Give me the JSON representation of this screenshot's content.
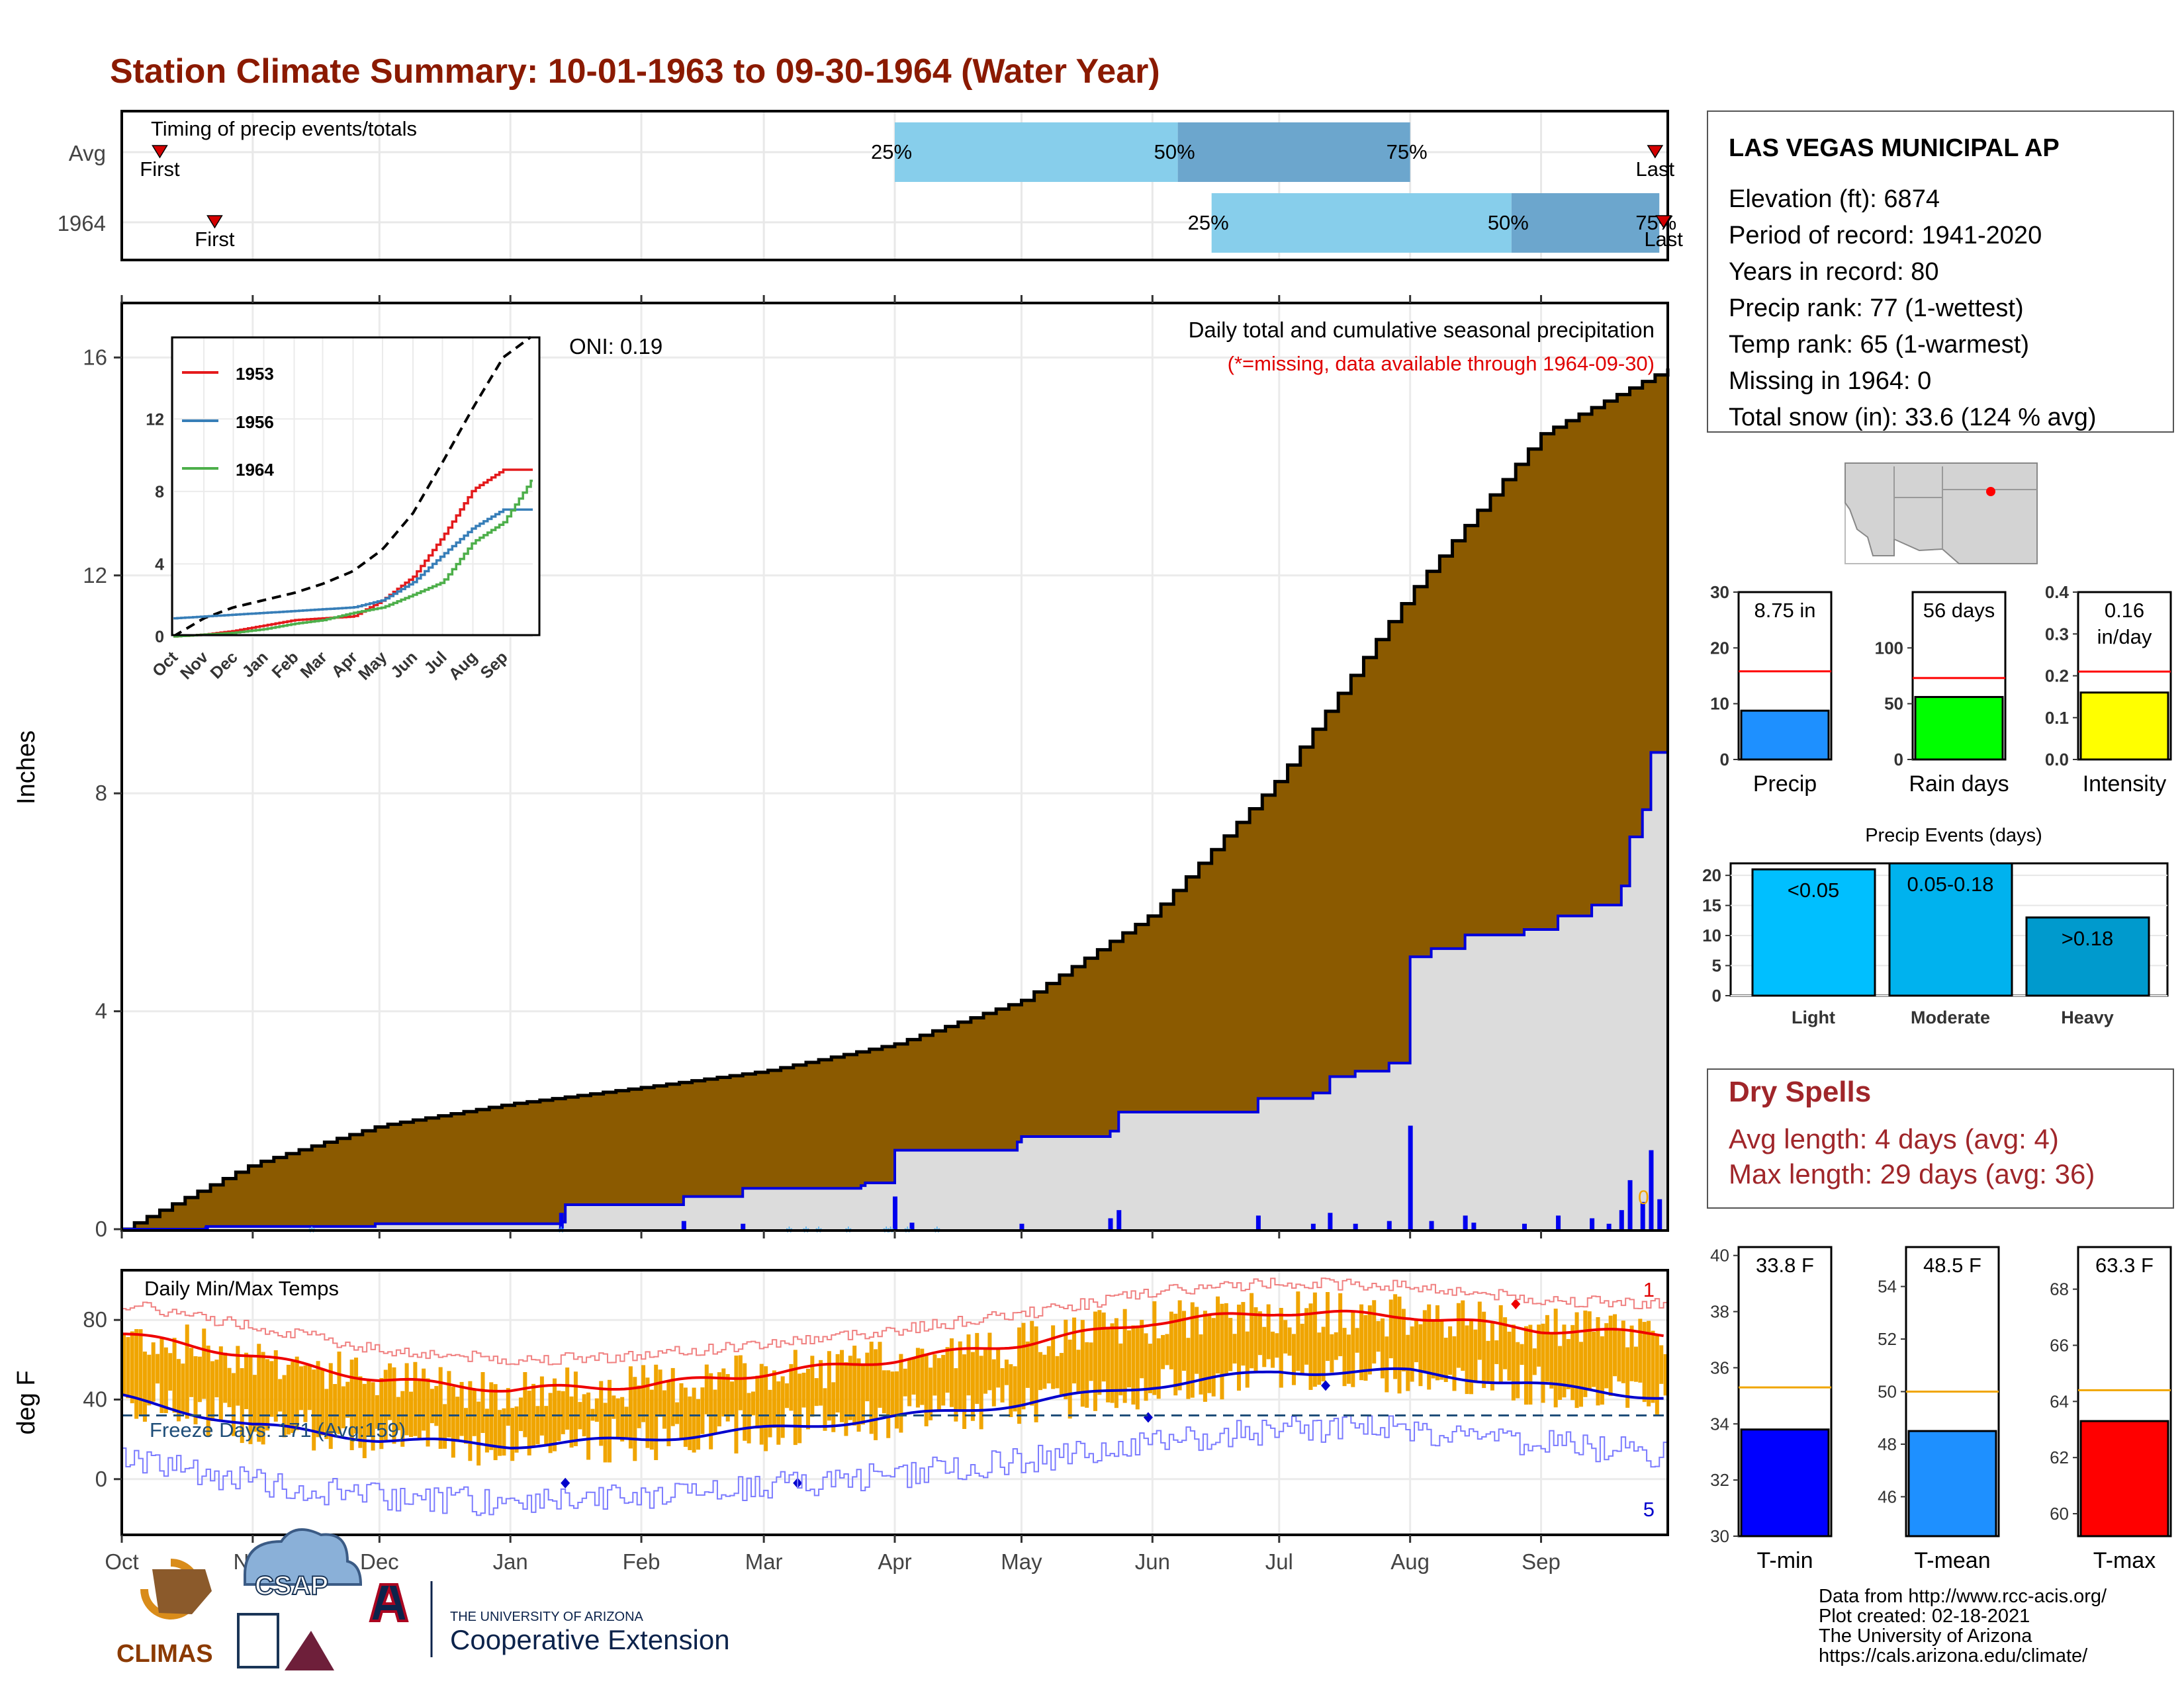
{
  "title": "Station Climate Summary: 10-01-1963 to 09-30-1964 (Water Year)",
  "colors": {
    "title": "#8b1a00",
    "accent_red": "#a0262a",
    "precip_brown": "#8b5a00",
    "avg_gray": "#dcdcdc",
    "obs_blue": "#0000dd",
    "quartile_light": "#87ceeb",
    "quartile_dark": "#6ca6cd",
    "temp_bar": "#f0a500"
  },
  "timing": {
    "label": "Timing of precip events/totals",
    "rows": [
      {
        "label": "Avg",
        "first": "First",
        "last": "Last",
        "q25": "25%",
        "q50": "50%",
        "q75": "75%"
      },
      {
        "label": "1964",
        "first": "First",
        "last": "Last",
        "q25": "25%",
        "q50": "50%",
        "q75": "75%"
      }
    ]
  },
  "station": {
    "name": "LAS VEGAS MUNICIPAL AP",
    "lines": [
      "Elevation (ft): 6874",
      "Period of record: 1941-2020",
      "Years in record: 80",
      "Precip rank: 77 (1-wettest)",
      "Temp rank: 65 (1-warmest)",
      "Missing in 1964: 0",
      "Total snow (in): 33.6 (124 % avg)"
    ]
  },
  "main_panel": {
    "ylabel": "Inches",
    "note1": "Daily total and cumulative seasonal precipitation",
    "note2": "(*=missing, data available through 1964-09-30)",
    "oni": "ONI: 0.19",
    "end_marker": "0",
    "ticks": [
      "0",
      "4",
      "8",
      "12",
      "16"
    ]
  },
  "inset": {
    "legend": [
      "1953",
      "1956",
      "1964"
    ],
    "ticks": [
      "0",
      "4",
      "8",
      "12"
    ],
    "months": [
      "Oct",
      "Nov",
      "Dec",
      "Jan",
      "Feb",
      "Mar",
      "Apr",
      "May",
      "Jun",
      "Jul",
      "Aug",
      "Sep"
    ]
  },
  "temp_panel": {
    "label": "Daily Min/Max Temps",
    "ylabel": "deg F",
    "freeze": "Freeze Days: 171 (Avg:159)",
    "count_top": "1",
    "count_bottom": "5",
    "ticks": [
      "0",
      "40",
      "80"
    ]
  },
  "x_months": [
    "Oct",
    "Nov",
    "Dec",
    "Jan",
    "Feb",
    "Mar",
    "Apr",
    "May",
    "Jun",
    "Jul",
    "Aug",
    "Sep"
  ],
  "precip_mini": [
    {
      "value_label": "8.75 in",
      "label": "Precip",
      "ticks": [
        "0",
        "10",
        "20",
        "30"
      ]
    },
    {
      "value_label": "56 days",
      "label": "Rain days",
      "ticks": [
        "0",
        "50",
        "100"
      ]
    },
    {
      "value_label": "0.16",
      "value_label2": "in/day",
      "label": "Intensity",
      "ticks": [
        "0.0",
        "0.1",
        "0.2",
        "0.3",
        "0.4"
      ]
    }
  ],
  "events": {
    "title": "Precip Events (days)",
    "ticks": [
      "0",
      "5",
      "10",
      "15",
      "20"
    ],
    "bars": [
      {
        "label": "<0.05",
        "category": "Light"
      },
      {
        "label": "0.05-0.18",
        "category": "Moderate"
      },
      {
        "label": ">0.18",
        "category": "Heavy"
      }
    ]
  },
  "dry_spells": {
    "title": "Dry Spells",
    "avg": "Avg length: 4 days (avg: 4)",
    "max": "Max length: 29 days (avg: 36)"
  },
  "temp_mini": [
    {
      "value_label": "33.8 F",
      "label": "T-min",
      "ticks": [
        "30",
        "32",
        "34",
        "36",
        "38",
        "40"
      ]
    },
    {
      "value_label": "48.5 F",
      "label": "T-mean",
      "ticks": [
        "46",
        "48",
        "50",
        "52",
        "54"
      ]
    },
    {
      "value_label": "63.3 F",
      "label": "T-max",
      "ticks": [
        "60",
        "62",
        "64",
        "66",
        "68"
      ]
    }
  ],
  "footer": {
    "lines": [
      "Data from http://www.rcc-acis.org/",
      "Plot created: 02-18-2021",
      "The University of Arizona",
      "https://cals.arizona.edu/climate/"
    ],
    "logo_climas": "CLIMAS",
    "logo_csap": "CSAP",
    "ua_small": "THE UNIVERSITY OF ARIZONA",
    "ua_big": "Cooperative Extension"
  },
  "chart_data": [
    {
      "type": "area",
      "title": "Daily total and cumulative seasonal precipitation",
      "ylabel": "Inches",
      "ylim": [
        0,
        17
      ],
      "x": [
        "Oct",
        "Nov",
        "Dec",
        "Jan",
        "Feb",
        "Mar",
        "Apr",
        "May",
        "Jun",
        "Jul",
        "Aug",
        "Sep",
        "Sep-30"
      ],
      "series": [
        {
          "name": "avg cumulative",
          "values": [
            0,
            1.2,
            1.9,
            2.3,
            2.6,
            2.9,
            3.4,
            4.2,
            5.8,
            8.3,
            11.7,
            14.6,
            15.8
          ]
        },
        {
          "name": "1964 cumulative",
          "values": [
            0,
            0.1,
            0.15,
            0.4,
            0.7,
            0.85,
            1.4,
            1.6,
            2.3,
            3.0,
            5.2,
            6.3,
            8.75
          ]
        }
      ]
    },
    {
      "type": "line",
      "title": "Daily Min/Max Temps",
      "ylabel": "deg F",
      "ylim": [
        -25,
        105
      ],
      "x": [
        "Oct",
        "Nov",
        "Dec",
        "Jan",
        "Feb",
        "Mar",
        "Apr",
        "May",
        "Jun",
        "Jul",
        "Aug",
        "Sep"
      ],
      "series": [
        {
          "name": "avg max",
          "values": [
            73,
            62,
            50,
            45,
            47,
            53,
            60,
            68,
            79,
            84,
            82,
            75
          ]
        },
        {
          "name": "avg min",
          "values": [
            41,
            27,
            20,
            17,
            20,
            25,
            31,
            38,
            47,
            54,
            54,
            47
          ]
        }
      ]
    },
    {
      "type": "line",
      "xlim": [
        "Oct",
        "Sep"
      ],
      "ylim": [
        0,
        16
      ],
      "x": [
        "Oct",
        "Nov",
        "Dec",
        "Jan",
        "Feb",
        "Mar",
        "Apr",
        "May",
        "Jun",
        "Jul",
        "Aug",
        "Sep",
        "Sep-30"
      ],
      "series": [
        {
          "name": "avg",
          "values": [
            0,
            1.0,
            1.6,
            2.0,
            2.4,
            2.9,
            3.6,
            4.8,
            6.8,
            9.6,
            12.6,
            15.4,
            16.6
          ]
        },
        {
          "name": "1953",
          "values": [
            0,
            0.1,
            0.3,
            0.6,
            0.9,
            1.0,
            1.1,
            2.0,
            3.3,
            5.5,
            8.1,
            9.2,
            9.2
          ]
        },
        {
          "name": "1956",
          "values": [
            1.0,
            1.1,
            1.2,
            1.3,
            1.4,
            1.5,
            1.6,
            2.0,
            3.0,
            4.5,
            6.0,
            7.0,
            7.0
          ]
        },
        {
          "name": "1964",
          "values": [
            0,
            0.1,
            0.2,
            0.4,
            0.7,
            0.9,
            1.3,
            1.6,
            2.3,
            3.0,
            5.2,
            6.3,
            8.75
          ]
        }
      ]
    },
    {
      "type": "bar",
      "categories": [
        "Precip"
      ],
      "values": [
        8.75
      ],
      "avg": 15.8,
      "ylim": [
        0,
        30
      ]
    },
    {
      "type": "bar",
      "categories": [
        "Rain days"
      ],
      "values": [
        56
      ],
      "avg": 73,
      "ylim": [
        0,
        150
      ]
    },
    {
      "type": "bar",
      "categories": [
        "Intensity"
      ],
      "values": [
        0.16
      ],
      "avg": 0.21,
      "ylim": [
        0,
        0.4
      ]
    },
    {
      "type": "bar",
      "title": "Precip Events (days)",
      "categories": [
        "Light",
        "Moderate",
        "Heavy"
      ],
      "values": [
        21,
        22,
        13
      ],
      "ylim": [
        0,
        22
      ]
    },
    {
      "type": "bar",
      "categories": [
        "T-min"
      ],
      "values": [
        33.8
      ],
      "avg": 35.3,
      "ylim": [
        30,
        40
      ]
    },
    {
      "type": "bar",
      "categories": [
        "T-mean"
      ],
      "values": [
        48.5
      ],
      "avg": 50.0,
      "ylim": [
        45,
        55
      ]
    },
    {
      "type": "bar",
      "categories": [
        "T-max"
      ],
      "values": [
        63.3
      ],
      "avg": 64.4,
      "ylim": [
        59,
        69
      ]
    }
  ]
}
